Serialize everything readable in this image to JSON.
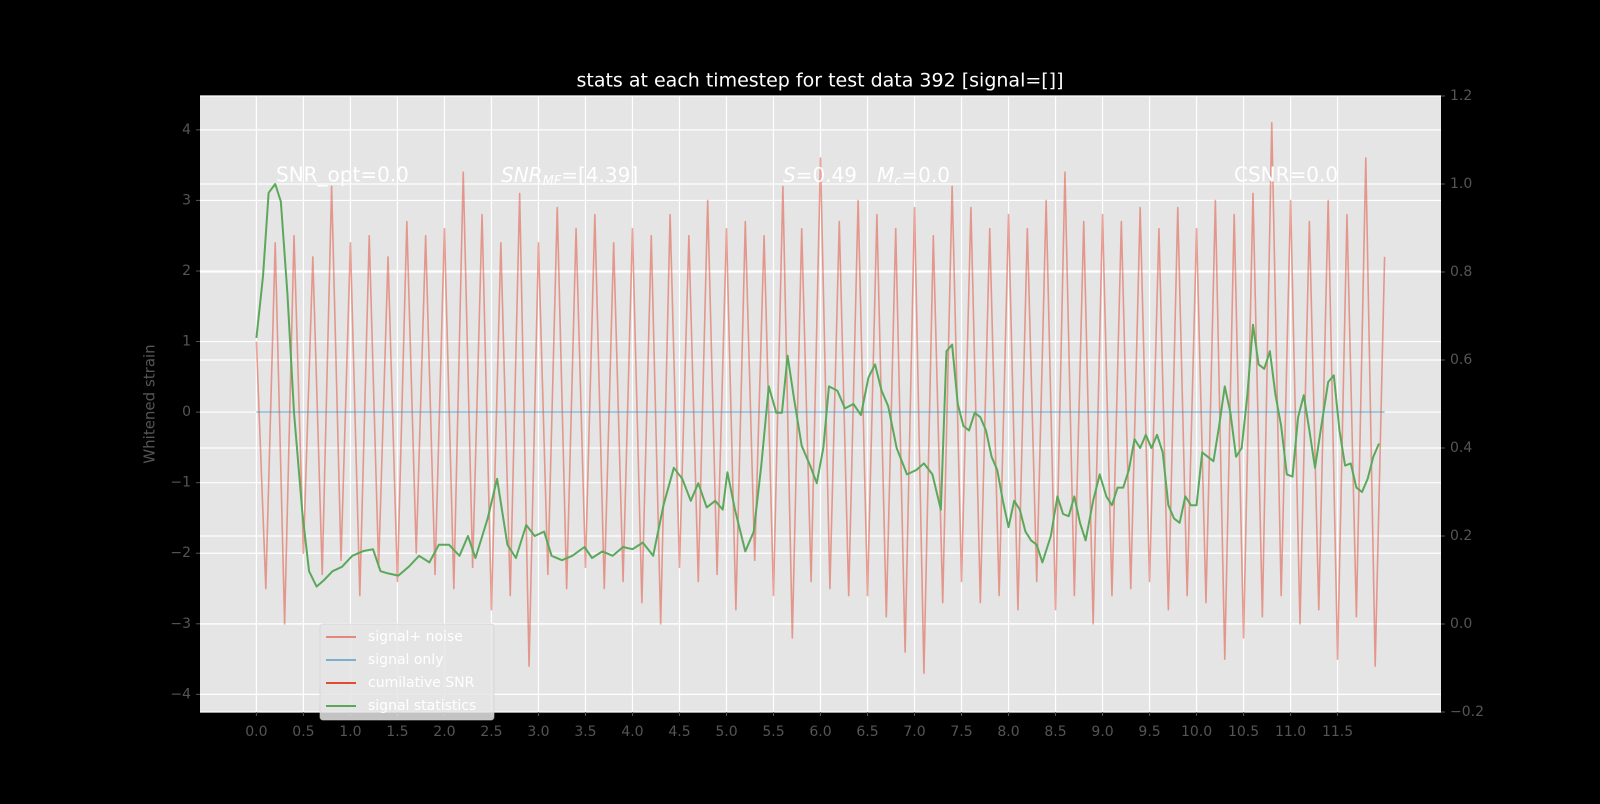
{
  "chart_data": {
    "type": "line",
    "title": "stats at each timestep for test data 392 [signal=[]]",
    "y_label": "Whitened strain",
    "xlim": [
      -0.6,
      12.6
    ],
    "ylim": [
      -4.25,
      4.48
    ],
    "y2lim": [
      -0.2,
      1.2
    ],
    "xticks": [
      {
        "value": 0,
        "label": "0.0"
      },
      0.5,
      {
        "value": 1,
        "label": "1.0"
      },
      1.5,
      {
        "value": 2,
        "label": "2.0"
      },
      2.5,
      {
        "value": 3,
        "label": "3.0"
      },
      3.5,
      {
        "value": 4,
        "label": "4.0"
      },
      4.5,
      {
        "value": 5,
        "label": "5.0"
      },
      5.5,
      {
        "value": 6,
        "label": "6.0"
      },
      6.5,
      {
        "value": 7,
        "label": "7.0"
      },
      7.5,
      {
        "value": 8,
        "label": "8.0"
      },
      8.5,
      {
        "value": 9,
        "label": "9.0"
      },
      9.5,
      {
        "value": 10,
        "label": "10.0"
      },
      10.5,
      {
        "value": 11,
        "label": "11.0"
      },
      11.5
    ],
    "yticks": [
      {
        "value": -4,
        "label": "−4"
      },
      {
        "value": -3,
        "label": "−3"
      },
      {
        "value": -2,
        "label": "−2"
      },
      {
        "value": -1,
        "label": "−1"
      },
      0,
      1,
      2,
      3,
      4
    ],
    "y2ticks": [
      {
        "value": -0.2,
        "label": "−0.2"
      },
      {
        "value": 0,
        "label": "0.0"
      },
      0.2,
      0.4,
      0.6,
      0.8,
      {
        "value": 1,
        "label": "1.0"
      },
      1.2
    ],
    "grid": true,
    "legend_position": "lower left",
    "annotations": [
      {
        "text": "SNR_opt=0.0"
      },
      {
        "main": "SNR",
        "sub": "MF",
        "rest": "=[4.39]"
      },
      {
        "main": "S",
        "rest": "=0.49"
      },
      {
        "main": "M",
        "sub": "c",
        "rest": "=0.0"
      },
      {
        "text": "CSNR=0.0"
      }
    ],
    "series": [
      {
        "name": "signal+ noise",
        "color": "#E24A33",
        "opacity": 0.5,
        "x": [
          0.0,
          0.1,
          0.2,
          0.3,
          0.4,
          0.5,
          0.6,
          0.7,
          0.8,
          0.9,
          1.0,
          1.1,
          1.2,
          1.3,
          1.4,
          1.5,
          1.6,
          1.7,
          1.8,
          1.9,
          2.0,
          2.1,
          2.2,
          2.3,
          2.4,
          2.5,
          2.6,
          2.7,
          2.8,
          2.9,
          3.0,
          3.1,
          3.2,
          3.3,
          3.4,
          3.5,
          3.6,
          3.7,
          3.8,
          3.9,
          4.0,
          4.1,
          4.2,
          4.3,
          4.4,
          4.5,
          4.6,
          4.7,
          4.8,
          4.9,
          5.0,
          5.1,
          5.2,
          5.3,
          5.4,
          5.5,
          5.6,
          5.7,
          5.8,
          5.9,
          6.0,
          6.1,
          6.2,
          6.3,
          6.4,
          6.5,
          6.6,
          6.7,
          6.8,
          6.9,
          7.0,
          7.1,
          7.2,
          7.3,
          7.4,
          7.5,
          7.6,
          7.7,
          7.8,
          7.9,
          8.0,
          8.1,
          8.2,
          8.3,
          8.4,
          8.5,
          8.6,
          8.7,
          8.8,
          8.9,
          9.0,
          9.1,
          9.2,
          9.3,
          9.4,
          9.5,
          9.6,
          9.7,
          9.8,
          9.9,
          10.0,
          10.1,
          10.2,
          10.3,
          10.4,
          10.5,
          10.6,
          10.7,
          10.8,
          10.9,
          11.0,
          11.1,
          11.2,
          11.3,
          11.4,
          11.5,
          11.6,
          11.7,
          11.8,
          11.9,
          12.0
        ],
        "values": [
          1.0,
          -2.5,
          2.4,
          -3.0,
          2.5,
          -2.0,
          2.2,
          -2.3,
          3.2,
          -2.1,
          2.4,
          -2.6,
          2.5,
          -2.2,
          2.2,
          -2.4,
          2.7,
          -2.0,
          2.5,
          -2.3,
          2.6,
          -2.5,
          3.4,
          -2.2,
          2.8,
          -2.8,
          2.4,
          -2.6,
          3.1,
          -3.6,
          2.4,
          -2.3,
          2.9,
          -2.5,
          2.6,
          -2.2,
          2.8,
          -2.5,
          2.4,
          -2.4,
          2.6,
          -2.7,
          2.5,
          -3.0,
          2.8,
          -2.2,
          2.5,
          -2.4,
          3.0,
          -2.3,
          2.6,
          -2.8,
          2.7,
          -2.1,
          2.5,
          -2.6,
          3.2,
          -3.2,
          2.6,
          -2.4,
          3.6,
          -2.5,
          2.7,
          -2.6,
          3.0,
          -2.6,
          2.8,
          -2.9,
          2.6,
          -3.4,
          2.9,
          -3.7,
          2.5,
          -2.7,
          3.2,
          -2.4,
          2.9,
          -2.7,
          2.6,
          -2.6,
          2.8,
          -2.8,
          2.6,
          -2.4,
          3.0,
          -2.8,
          3.4,
          -2.6,
          2.7,
          -3.0,
          2.8,
          -2.6,
          2.7,
          -2.5,
          2.9,
          -2.4,
          2.6,
          -2.8,
          2.9,
          -2.6,
          2.6,
          -2.7,
          3.0,
          -3.5,
          2.8,
          -3.2,
          3.1,
          -2.9,
          4.1,
          -2.6,
          3.0,
          -3.0,
          2.7,
          -2.8,
          3.0,
          -3.5,
          2.8,
          -2.9,
          3.6,
          -3.6,
          2.2
        ]
      },
      {
        "name": "signal only",
        "color": "#348ABD",
        "opacity": 0.5,
        "x": [
          0.0,
          12.0
        ],
        "values": [
          0,
          0
        ]
      },
      {
        "name": "cumilative SNR",
        "color": "#E24A33",
        "opacity": 1
      },
      {
        "name": "signal statistics",
        "color": "#5ba85b",
        "opacity": 1,
        "axis": "y2",
        "x": [
          0.0,
          0.07,
          0.13,
          0.2,
          0.26,
          0.33,
          0.4,
          0.49,
          0.56,
          0.64,
          0.72,
          0.81,
          0.91,
          1.02,
          1.14,
          1.24,
          1.32,
          1.4,
          1.51,
          1.62,
          1.73,
          1.84,
          1.94,
          2.05,
          2.16,
          2.25,
          2.33,
          2.46,
          2.56,
          2.67,
          2.76,
          2.87,
          2.96,
          3.06,
          3.14,
          3.25,
          3.36,
          3.49,
          3.57,
          3.68,
          3.79,
          3.9,
          4.0,
          4.11,
          4.22,
          4.33,
          4.44,
          4.53,
          4.62,
          4.7,
          4.79,
          4.88,
          4.96,
          5.01,
          5.09,
          5.2,
          5.29,
          5.37,
          5.45,
          5.53,
          5.59,
          5.65,
          5.72,
          5.8,
          5.89,
          5.96,
          6.03,
          6.09,
          6.18,
          6.26,
          6.35,
          6.43,
          6.51,
          6.58,
          6.65,
          6.72,
          6.81,
          6.92,
          7.02,
          7.1,
          7.19,
          7.28,
          7.34,
          7.4,
          7.46,
          7.52,
          7.58,
          7.64,
          7.7,
          7.76,
          7.82,
          7.88,
          7.94,
          8.0,
          8.06,
          8.12,
          8.18,
          8.24,
          8.3,
          8.36,
          8.45,
          8.52,
          8.58,
          8.64,
          8.7,
          8.76,
          8.82,
          8.9,
          8.97,
          9.04,
          9.1,
          9.16,
          9.22,
          9.28,
          9.34,
          9.4,
          9.46,
          9.52,
          9.58,
          9.64,
          9.7,
          9.76,
          9.82,
          9.88,
          9.94,
          10.0,
          10.06,
          10.12,
          10.18,
          10.24,
          10.3,
          10.36,
          10.42,
          10.48,
          10.54,
          10.6,
          10.66,
          10.72,
          10.78,
          10.84,
          10.9,
          10.96,
          11.02,
          11.08,
          11.14,
          11.2,
          11.26,
          11.32,
          11.4,
          11.46,
          11.52,
          11.58,
          11.64,
          11.7,
          11.76,
          11.82,
          11.88,
          11.94
        ],
        "values": [
          0.65,
          0.79,
          0.98,
          1.0,
          0.96,
          0.75,
          0.48,
          0.25,
          0.12,
          0.085,
          0.1,
          0.12,
          0.13,
          0.155,
          0.166,
          0.17,
          0.12,
          0.115,
          0.11,
          0.13,
          0.155,
          0.14,
          0.18,
          0.18,
          0.155,
          0.2,
          0.15,
          0.24,
          0.33,
          0.18,
          0.15,
          0.225,
          0.2,
          0.21,
          0.155,
          0.145,
          0.155,
          0.175,
          0.15,
          0.165,
          0.155,
          0.175,
          0.17,
          0.185,
          0.155,
          0.27,
          0.355,
          0.33,
          0.28,
          0.32,
          0.265,
          0.28,
          0.26,
          0.345,
          0.26,
          0.165,
          0.21,
          0.36,
          0.54,
          0.48,
          0.48,
          0.61,
          0.51,
          0.405,
          0.36,
          0.32,
          0.4,
          0.54,
          0.53,
          0.49,
          0.5,
          0.475,
          0.56,
          0.59,
          0.53,
          0.495,
          0.4,
          0.34,
          0.35,
          0.365,
          0.34,
          0.26,
          0.62,
          0.635,
          0.5,
          0.45,
          0.44,
          0.48,
          0.47,
          0.44,
          0.38,
          0.35,
          0.28,
          0.22,
          0.28,
          0.26,
          0.21,
          0.19,
          0.18,
          0.14,
          0.2,
          0.29,
          0.25,
          0.245,
          0.29,
          0.23,
          0.19,
          0.28,
          0.34,
          0.29,
          0.27,
          0.31,
          0.31,
          0.35,
          0.42,
          0.4,
          0.43,
          0.4,
          0.43,
          0.39,
          0.27,
          0.24,
          0.23,
          0.29,
          0.27,
          0.27,
          0.39,
          0.38,
          0.37,
          0.45,
          0.54,
          0.48,
          0.38,
          0.4,
          0.52,
          0.68,
          0.59,
          0.58,
          0.62,
          0.52,
          0.45,
          0.34,
          0.335,
          0.47,
          0.52,
          0.44,
          0.355,
          0.44,
          0.55,
          0.565,
          0.44,
          0.36,
          0.365,
          0.31,
          0.3,
          0.33,
          0.38,
          0.41
        ]
      }
    ]
  }
}
